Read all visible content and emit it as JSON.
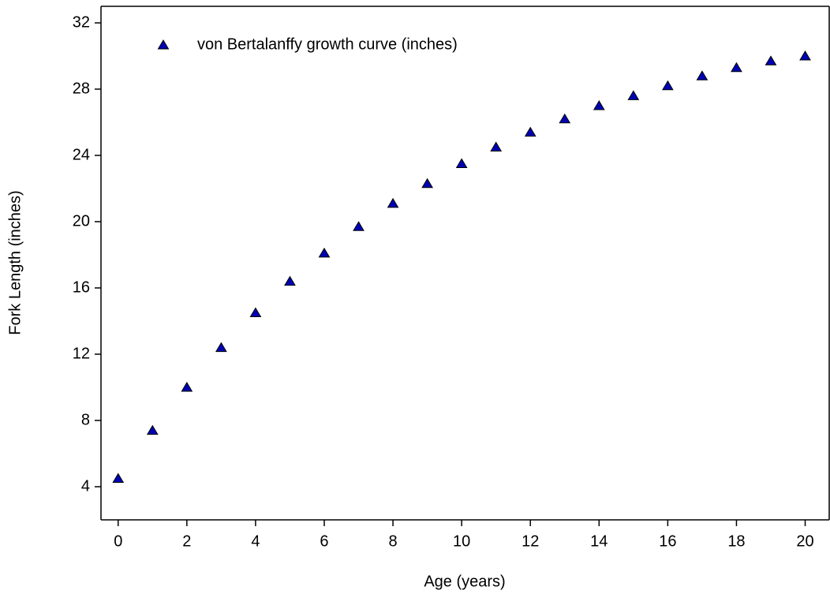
{
  "chart_data": {
    "type": "scatter",
    "xlabel": "Age (years)",
    "ylabel": "Fork Length (inches)",
    "x": [
      0,
      1,
      2,
      3,
      4,
      5,
      6,
      7,
      8,
      9,
      10,
      11,
      12,
      13,
      14,
      15,
      16,
      17,
      18,
      19,
      20
    ],
    "series": [
      {
        "name": "von Bertalanffy growth curve (inches)",
        "color": "#0000b4",
        "values": [
          4.5,
          7.4,
          10.0,
          12.4,
          14.5,
          16.4,
          18.1,
          19.7,
          21.1,
          22.3,
          23.5,
          24.5,
          25.4,
          26.2,
          27.0,
          27.6,
          28.2,
          28.8,
          29.3,
          29.7,
          30.0
        ]
      }
    ],
    "xlim": [
      -0.5,
      20.7
    ],
    "xticks": [
      0,
      2,
      4,
      6,
      8,
      10,
      12,
      14,
      16,
      18,
      20
    ],
    "ylim": [
      2,
      33
    ],
    "yticks": [
      4,
      8,
      12,
      16,
      20,
      24,
      28,
      32
    ],
    "grid": false,
    "legend": "upper left"
  }
}
